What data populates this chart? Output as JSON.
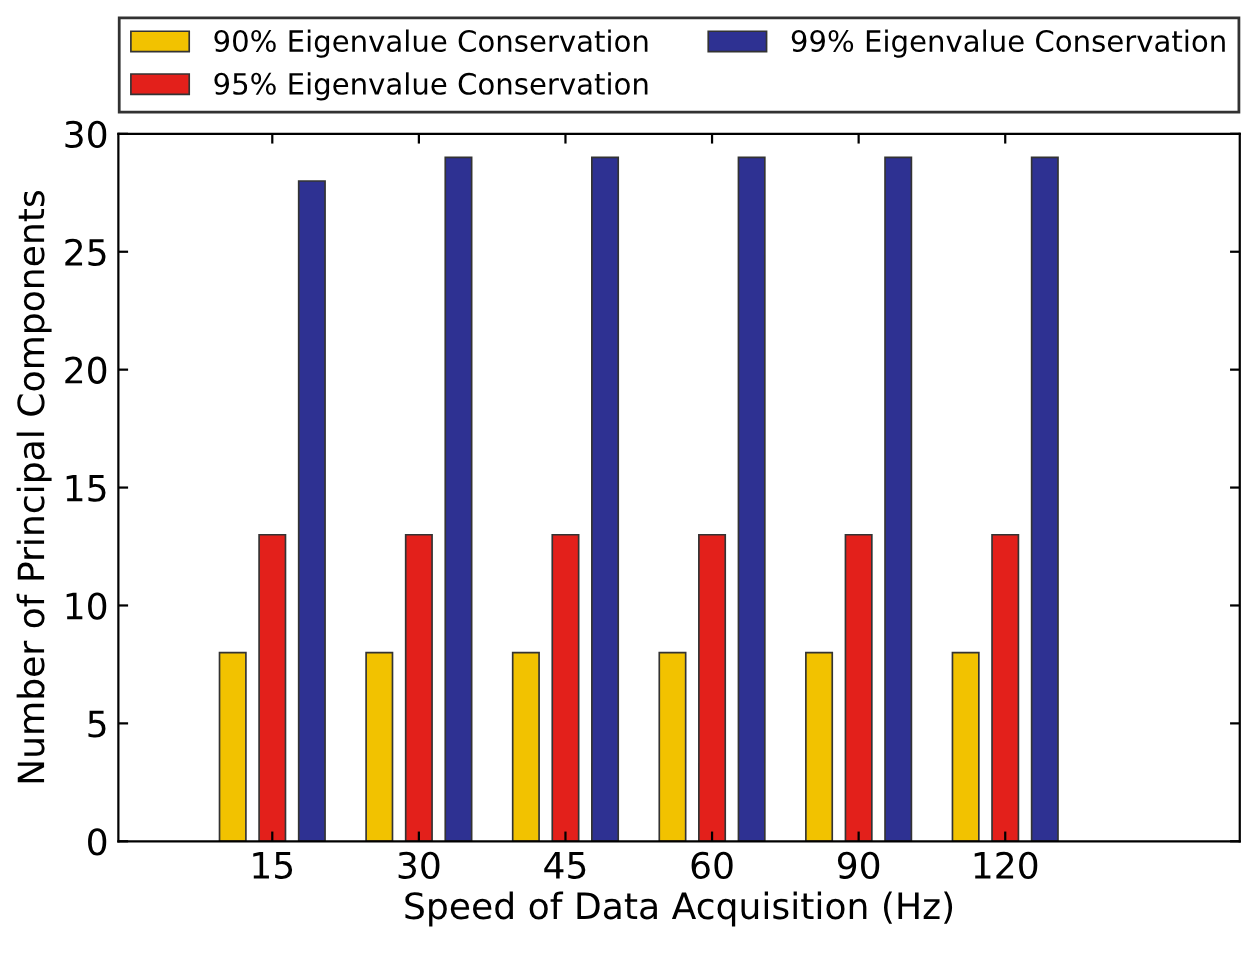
{
  "chart_data": {
    "type": "bar",
    "xlabel": "Speed of Data Acquisition (Hz)",
    "ylabel": "Number of Principal Components",
    "categories": [
      "15",
      "30",
      "45",
      "60",
      "90",
      "120"
    ],
    "series": [
      {
        "name": "90% Eigenvalue Conservation",
        "color": "#f2c200",
        "values": [
          8,
          8,
          8,
          8,
          8,
          8
        ]
      },
      {
        "name": "95% Eigenvalue Conservation",
        "color": "#e3201b",
        "values": [
          13,
          13,
          13,
          13,
          13,
          13
        ]
      },
      {
        "name": "99% Eigenvalue Conservation",
        "color": "#2e3192",
        "values": [
          28,
          29,
          29,
          29,
          29,
          29
        ]
      }
    ],
    "ylim": [
      0,
      30
    ],
    "yticks": [
      0,
      5,
      10,
      15,
      20,
      25,
      30
    ],
    "grid": false,
    "legend": "top"
  }
}
